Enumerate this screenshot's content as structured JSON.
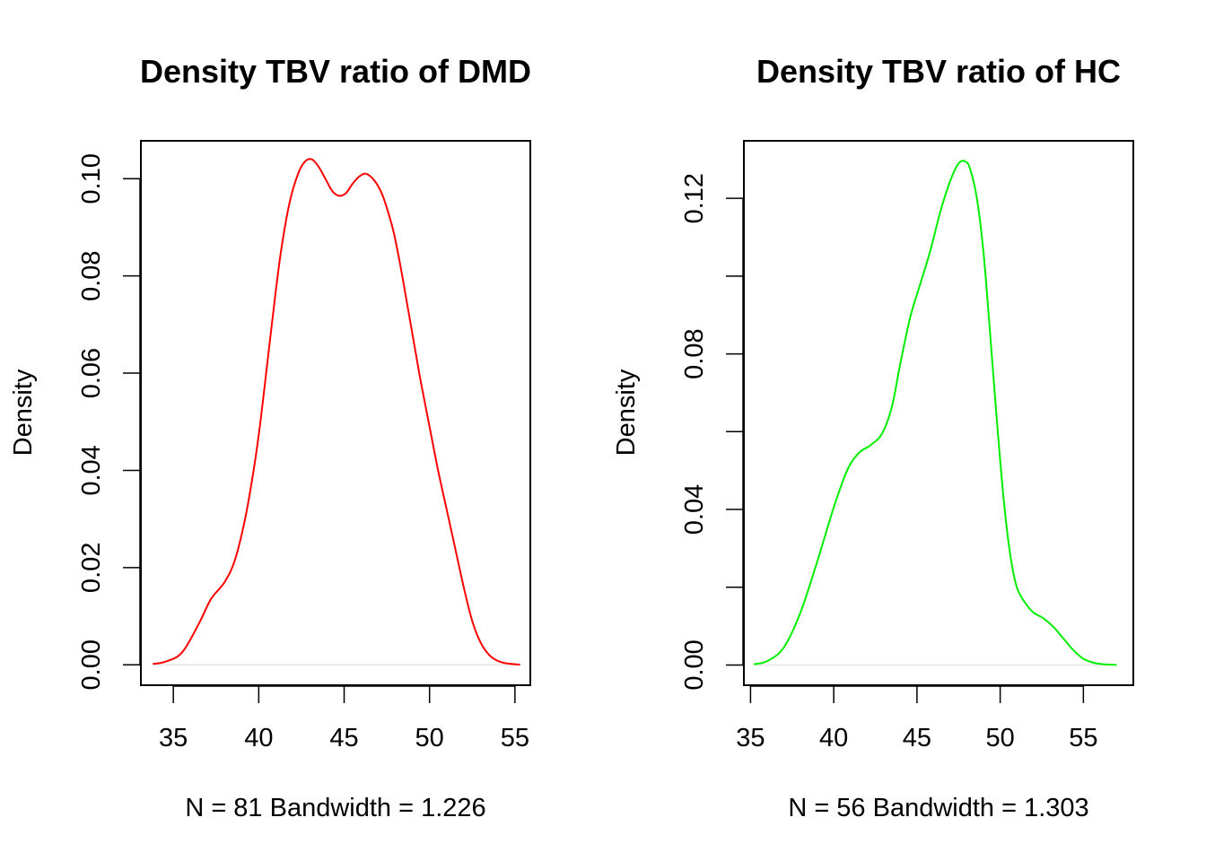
{
  "chart_data": [
    {
      "type": "line",
      "title": "Density TBV ratio of DMD",
      "xlabel": "N = 81   Bandwidth = 1.226",
      "ylabel": "Density",
      "xlim": [
        33.1,
        55.9
      ],
      "ylim": [
        -0.0042,
        0.1078
      ],
      "x_ticks": [
        "35",
        "40",
        "45",
        "50",
        "55"
      ],
      "y_ticks": [
        "0.00",
        "0.02",
        "0.04",
        "0.06",
        "0.08",
        "0.10"
      ],
      "grid": false,
      "baseline_color": "#e6e6e6",
      "series": [
        {
          "color": "#ff0000",
          "x": [
            33.8,
            34.5,
            35.5,
            36.5,
            37.2,
            38.0,
            38.6,
            39.2,
            39.7,
            40.1,
            40.5,
            40.9,
            41.3,
            41.8,
            42.3,
            42.7,
            43.1,
            43.5,
            43.9,
            44.3,
            44.7,
            45.1,
            45.5,
            45.9,
            46.3,
            46.8,
            47.2,
            47.5,
            47.9,
            48.3,
            48.7,
            49.1,
            49.5,
            50.0,
            50.5,
            51.0,
            51.5,
            52.0,
            52.5,
            53.0,
            53.5,
            54.0,
            54.5,
            55.3
          ],
          "y": [
            0.0002,
            0.0006,
            0.0025,
            0.0085,
            0.0135,
            0.017,
            0.0215,
            0.03,
            0.04,
            0.05,
            0.062,
            0.074,
            0.085,
            0.095,
            0.101,
            0.1035,
            0.104,
            0.1025,
            0.1,
            0.0975,
            0.0965,
            0.097,
            0.099,
            0.1005,
            0.101,
            0.0995,
            0.097,
            0.094,
            0.089,
            0.082,
            0.074,
            0.066,
            0.058,
            0.049,
            0.04,
            0.032,
            0.024,
            0.016,
            0.009,
            0.0045,
            0.002,
            0.0008,
            0.0003,
            3e-05
          ]
        }
      ]
    },
    {
      "type": "line",
      "title": "Density TBV ratio of HC",
      "xlabel": "N = 56   Bandwidth = 1.303",
      "ylabel": "Density",
      "xlim": [
        34.6,
        58.0
      ],
      "ylim": [
        -0.0052,
        0.1348
      ],
      "x_ticks": [
        "35",
        "40",
        "45",
        "50",
        "55"
      ],
      "y_ticks": [
        "0.00",
        "0.04",
        "0.08",
        "0.12"
      ],
      "y_minor_ticks": [
        0.02,
        0.06,
        0.1
      ],
      "grid": false,
      "baseline_color": "#e6e6e6",
      "series": [
        {
          "color": "#00ee00",
          "x": [
            35.2,
            36.0,
            37.0,
            38.0,
            39.0,
            40.0,
            40.8,
            41.5,
            42.2,
            42.9,
            43.5,
            44.0,
            44.6,
            45.2,
            45.8,
            46.4,
            47.0,
            47.5,
            47.9,
            48.2,
            48.6,
            49.0,
            49.4,
            49.8,
            50.2,
            50.6,
            51.0,
            51.5,
            52.0,
            52.6,
            53.2,
            53.8,
            54.4,
            55.0,
            55.6,
            56.2,
            57.0
          ],
          "y": [
            0.0002,
            0.001,
            0.0045,
            0.0135,
            0.0265,
            0.0405,
            0.05,
            0.0545,
            0.0565,
            0.0595,
            0.0665,
            0.0775,
            0.0895,
            0.098,
            0.1065,
            0.1165,
            0.1245,
            0.129,
            0.1295,
            0.1275,
            0.12,
            0.106,
            0.085,
            0.063,
            0.043,
            0.0285,
            0.02,
            0.016,
            0.0135,
            0.012,
            0.0098,
            0.0068,
            0.0038,
            0.0016,
            0.0006,
            0.0002,
            2e-05
          ]
        }
      ]
    }
  ]
}
